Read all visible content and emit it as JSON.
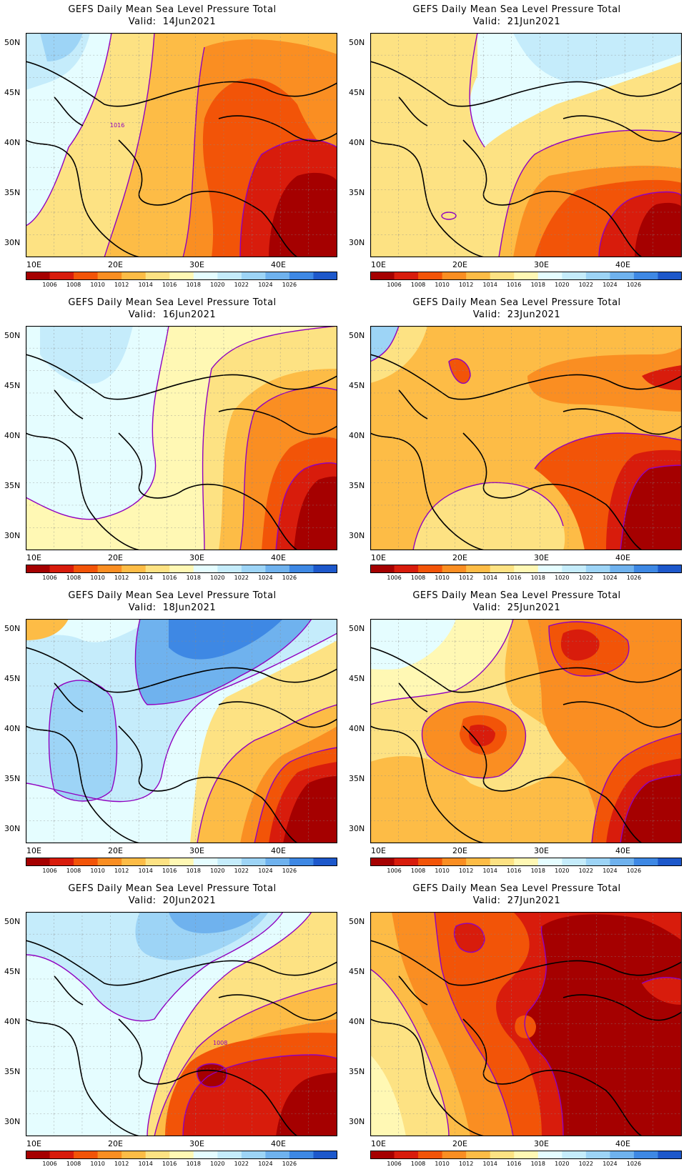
{
  "figure": {
    "title": "GEFS Daily Mean Sea Level Pressure Total",
    "valid_prefix": "Valid:",
    "lat_labels": [
      "50N",
      "45N",
      "40N",
      "35N",
      "30N"
    ],
    "lon_labels": [
      "10E",
      "20E",
      "30E",
      "40E"
    ],
    "colorbar": {
      "labels": [
        "1006",
        "1008",
        "1010",
        "1012",
        "1014",
        "1016",
        "1018",
        "1020",
        "1022",
        "1024",
        "1026"
      ],
      "colors": [
        "#a50000",
        "#d81c0c",
        "#f25408",
        "#fa8e22",
        "#fdbc46",
        "#fde283",
        "#fff8b4",
        "#e5fdff",
        "#c5ecfb",
        "#9dd4f6",
        "#6fb2ee",
        "#3e88e4",
        "#1d58cb"
      ]
    }
  },
  "panels": [
    {
      "date": "14Jun2021",
      "contour_label": "1016"
    },
    {
      "date": "21Jun2021",
      "contour_label": ""
    },
    {
      "date": "16Jun2021",
      "contour_label": ""
    },
    {
      "date": "23Jun2021",
      "contour_label": ""
    },
    {
      "date": "18Jun2021",
      "contour_label": ""
    },
    {
      "date": "25Jun2021",
      "contour_label": ""
    },
    {
      "date": "20Jun2021",
      "contour_label": "1008"
    },
    {
      "date": "27Jun2021",
      "contour_label": ""
    }
  ]
}
